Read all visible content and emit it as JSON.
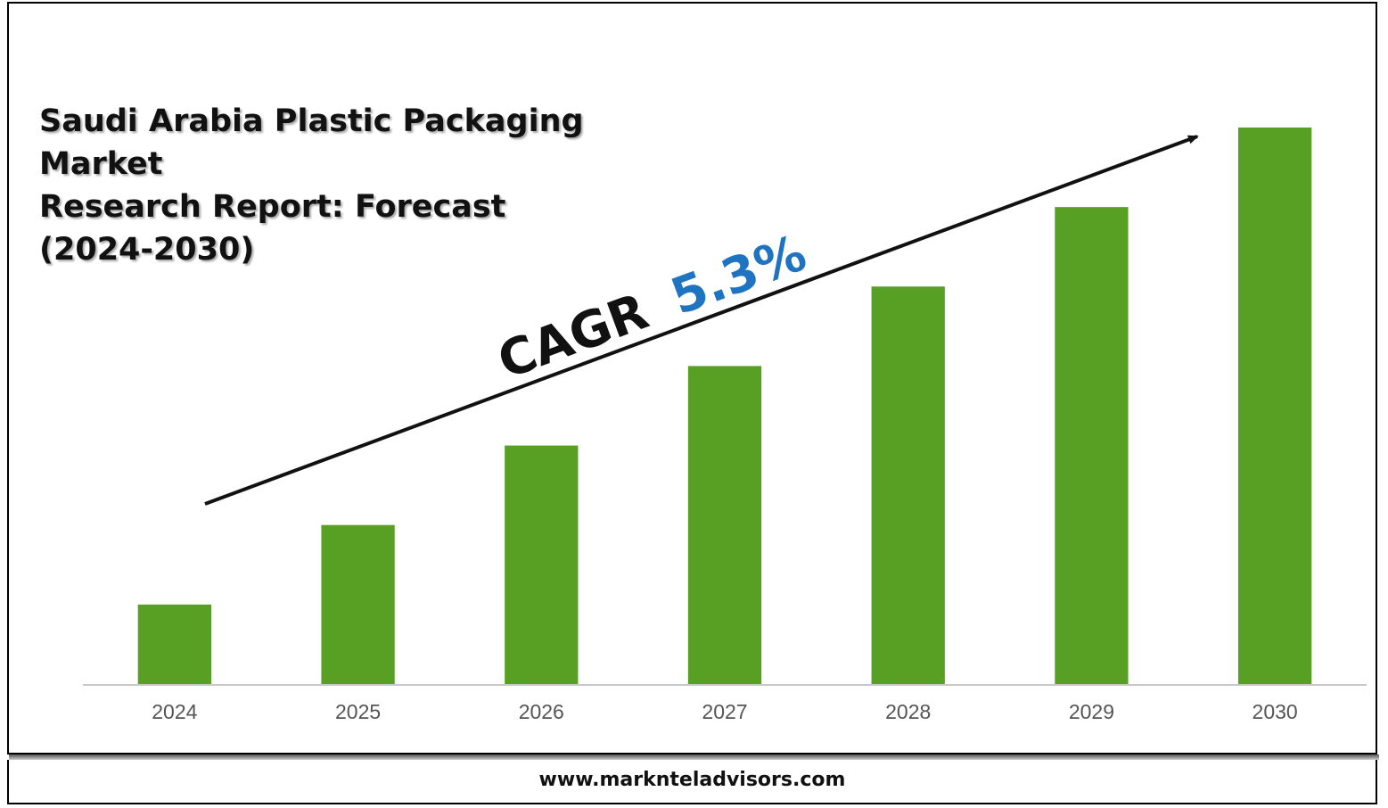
{
  "title_lines": [
    "Saudi Arabia Plastic Packaging Market",
    "Research Report: Forecast",
    "(2024-2030)"
  ],
  "annotation": {
    "label": "CAGR",
    "value": "5.3%",
    "label_color": "#111111",
    "value_color": "#1f74c2"
  },
  "footer": {
    "website": "www.marknteladvisors.com"
  },
  "colors": {
    "bar": "#57a024",
    "axis": "#c8c8c8",
    "tick_label": "#555555"
  },
  "chart_data": {
    "type": "bar",
    "title": "Saudi Arabia Plastic Packaging Market Research Report: Forecast (2024-2030)",
    "categories": [
      "2024",
      "2025",
      "2026",
      "2027",
      "2028",
      "2029",
      "2030"
    ],
    "values": [
      1.0,
      2.0,
      3.0,
      4.0,
      5.0,
      6.0,
      7.0
    ],
    "ylim": [
      0,
      7
    ],
    "xlabel": "",
    "ylabel": "",
    "grid": false,
    "legend": "none",
    "y_axis_visible": false
  }
}
